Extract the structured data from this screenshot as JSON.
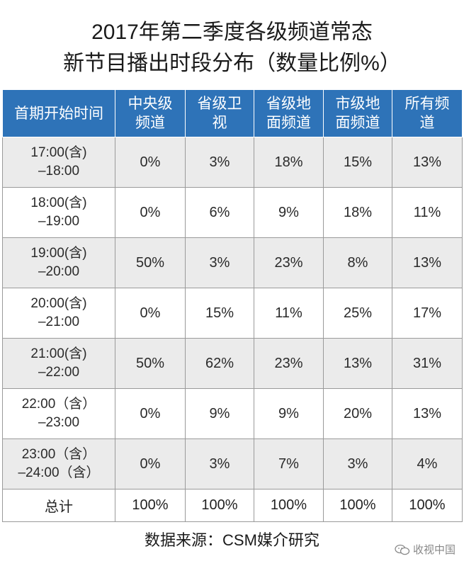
{
  "title_lines": [
    "2017年第二季度各级频道常态",
    "新节目播出时段分布（数量比例%）"
  ],
  "chart_data": {
    "type": "table",
    "title": "2017年第二季度各级频道常态新节目播出时段分布（数量比例%）",
    "columns": [
      [
        "首期开始时间"
      ],
      [
        "中央级",
        "频道"
      ],
      [
        "省级卫",
        "视"
      ],
      [
        "省级地",
        "面频道"
      ],
      [
        "市级地",
        "面频道"
      ],
      [
        "所有频",
        "道"
      ]
    ],
    "rows": [
      {
        "time": [
          "17:00(含)",
          "–18:00"
        ],
        "values": [
          "0%",
          "3%",
          "18%",
          "15%",
          "13%"
        ]
      },
      {
        "time": [
          "18:00(含)",
          "–19:00"
        ],
        "values": [
          "0%",
          "6%",
          "9%",
          "18%",
          "11%"
        ]
      },
      {
        "time": [
          "19:00(含)",
          "–20:00"
        ],
        "values": [
          "50%",
          "3%",
          "23%",
          "8%",
          "13%"
        ]
      },
      {
        "time": [
          "20:00(含)",
          "–21:00"
        ],
        "values": [
          "0%",
          "15%",
          "11%",
          "25%",
          "17%"
        ]
      },
      {
        "time": [
          "21:00(含)",
          "–22:00"
        ],
        "values": [
          "50%",
          "62%",
          "23%",
          "13%",
          "31%"
        ]
      },
      {
        "time": [
          "22:00（含）",
          "–23:00"
        ],
        "values": [
          "0%",
          "9%",
          "9%",
          "20%",
          "13%"
        ]
      },
      {
        "time": [
          "23:00（含）",
          "–24:00（含）"
        ],
        "values": [
          "0%",
          "3%",
          "7%",
          "3%",
          "4%"
        ]
      }
    ],
    "total": {
      "label": "总计",
      "values": [
        "100%",
        "100%",
        "100%",
        "100%",
        "100%"
      ]
    }
  },
  "source": "数据来源：CSM媒介研究",
  "watermark": {
    "icon": "wechat-icon",
    "text": "收视中国"
  },
  "colors": {
    "header_bg": "#2e73b8",
    "header_text": "#ffffff",
    "stripe": "#ebebeb"
  }
}
